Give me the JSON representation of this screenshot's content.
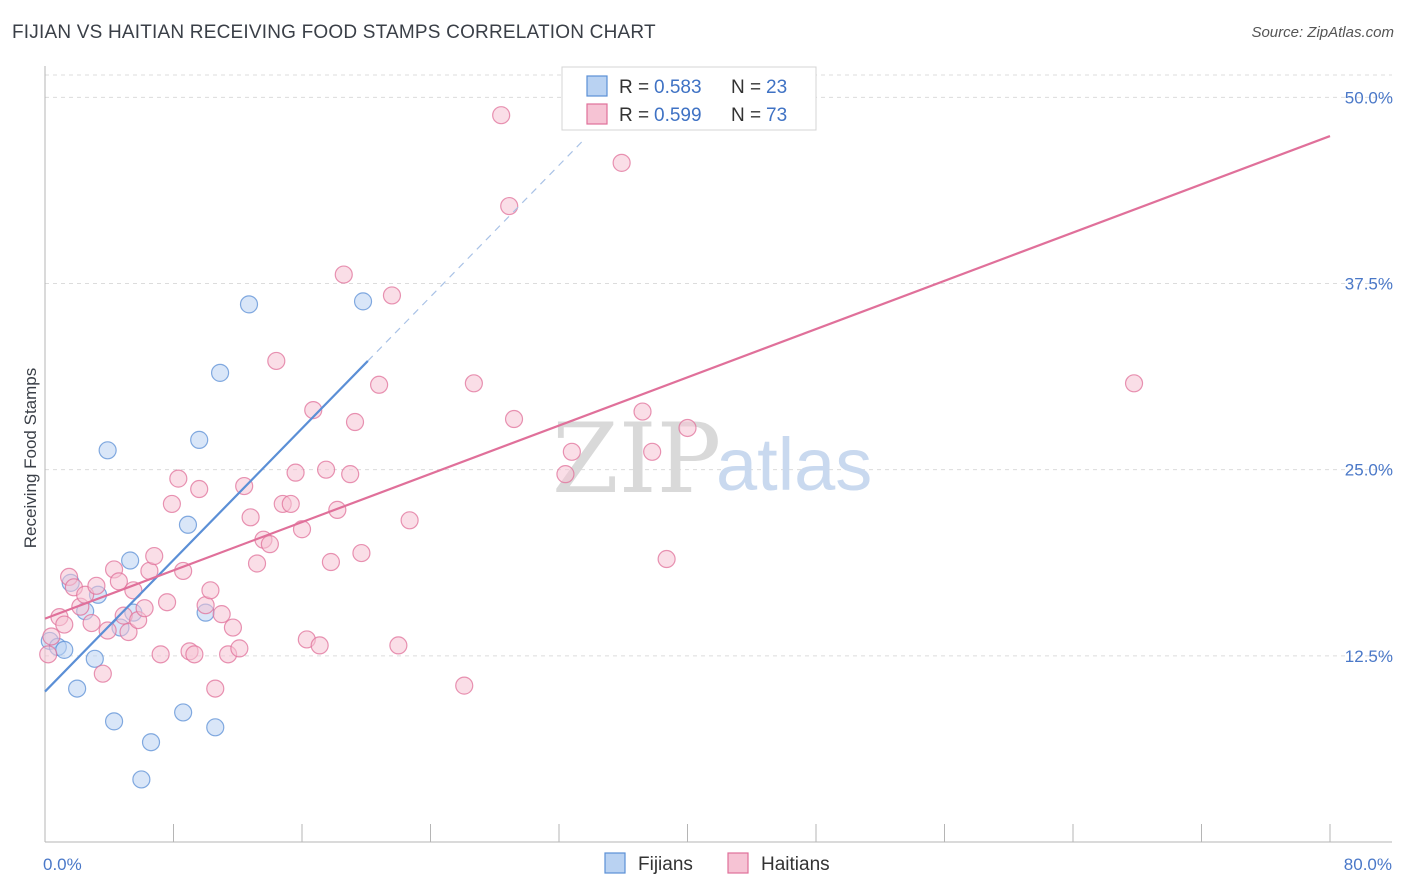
{
  "title": "FIJIAN VS HAITIAN RECEIVING FOOD STAMPS CORRELATION CHART",
  "source": "Source: ZipAtlas.com",
  "watermark": {
    "zip": "ZIP",
    "atlas": "atlas"
  },
  "chart_data": {
    "type": "scatter",
    "xlabel": "",
    "ylabel": "Receiving Food Stamps",
    "xlim": [
      0,
      80
    ],
    "ylim": [
      0,
      51.5
    ],
    "x_tick_labels": [
      {
        "value": 0,
        "label": "0.0%"
      },
      {
        "value": 80,
        "label": "80.0%"
      }
    ],
    "y_tick_labels": [
      {
        "value": 12.5,
        "label": "12.5%"
      },
      {
        "value": 25.0,
        "label": "25.0%"
      },
      {
        "value": 37.5,
        "label": "37.5%"
      },
      {
        "value": 50.0,
        "label": "50.0%"
      }
    ],
    "legend_stats": [
      {
        "name": "Fijians",
        "r_label": "R =",
        "r_value": "0.583",
        "n_label": "N =",
        "n_value": "23"
      },
      {
        "name": "Haitians",
        "r_label": "R =",
        "r_value": "0.599",
        "n_label": "N =",
        "n_value": "73"
      }
    ],
    "series": [
      {
        "name": "Fijians",
        "color": "#5b8fd6",
        "fill": "#b9d2f2",
        "trend": {
          "x0": 0,
          "y0": 10.1,
          "x1": 20.1,
          "y1": 32.3,
          "dash_to_x": 33.6
        },
        "points": [
          [
            0.3,
            13.5
          ],
          [
            0.8,
            13.1
          ],
          [
            1.2,
            12.9
          ],
          [
            1.6,
            17.4
          ],
          [
            2.0,
            10.3
          ],
          [
            2.5,
            15.5
          ],
          [
            3.1,
            12.3
          ],
          [
            3.3,
            16.6
          ],
          [
            3.9,
            26.3
          ],
          [
            4.3,
            8.1
          ],
          [
            4.7,
            14.4
          ],
          [
            5.3,
            18.9
          ],
          [
            5.5,
            15.4
          ],
          [
            6.0,
            4.2
          ],
          [
            6.6,
            6.7
          ],
          [
            8.6,
            8.7
          ],
          [
            8.9,
            21.3
          ],
          [
            9.6,
            27.0
          ],
          [
            10.0,
            15.4
          ],
          [
            10.6,
            7.7
          ],
          [
            10.9,
            31.5
          ],
          [
            12.7,
            36.1
          ],
          [
            19.8,
            36.3
          ]
        ]
      },
      {
        "name": "Haitians",
        "color": "#e0709a",
        "fill": "#f6c3d4",
        "trend": {
          "x0": 0,
          "y0": 15.0,
          "x1": 80,
          "y1": 47.4
        },
        "points": [
          [
            0.2,
            12.6
          ],
          [
            0.4,
            13.8
          ],
          [
            0.9,
            15.1
          ],
          [
            1.2,
            14.6
          ],
          [
            1.5,
            17.8
          ],
          [
            1.8,
            17.1
          ],
          [
            2.2,
            15.8
          ],
          [
            2.5,
            16.6
          ],
          [
            2.9,
            14.7
          ],
          [
            3.2,
            17.2
          ],
          [
            3.6,
            11.3
          ],
          [
            3.9,
            14.2
          ],
          [
            4.3,
            18.3
          ],
          [
            4.6,
            17.5
          ],
          [
            4.9,
            15.2
          ],
          [
            5.2,
            14.1
          ],
          [
            5.5,
            16.9
          ],
          [
            5.8,
            14.9
          ],
          [
            6.2,
            15.7
          ],
          [
            6.5,
            18.2
          ],
          [
            6.8,
            19.2
          ],
          [
            7.2,
            12.6
          ],
          [
            7.6,
            16.1
          ],
          [
            7.9,
            22.7
          ],
          [
            8.3,
            24.4
          ],
          [
            8.6,
            18.2
          ],
          [
            9.0,
            12.8
          ],
          [
            9.3,
            12.6
          ],
          [
            9.6,
            23.7
          ],
          [
            10.0,
            15.9
          ],
          [
            10.3,
            16.9
          ],
          [
            10.6,
            10.3
          ],
          [
            11.0,
            15.3
          ],
          [
            11.4,
            12.6
          ],
          [
            11.7,
            14.4
          ],
          [
            12.1,
            13.0
          ],
          [
            12.4,
            23.9
          ],
          [
            12.8,
            21.8
          ],
          [
            13.2,
            18.7
          ],
          [
            13.6,
            20.3
          ],
          [
            14.0,
            20.0
          ],
          [
            14.4,
            32.3
          ],
          [
            14.8,
            22.7
          ],
          [
            15.3,
            22.7
          ],
          [
            15.6,
            24.8
          ],
          [
            16.0,
            21.0
          ],
          [
            16.3,
            13.6
          ],
          [
            16.7,
            29.0
          ],
          [
            17.1,
            13.2
          ],
          [
            17.5,
            25.0
          ],
          [
            17.8,
            18.8
          ],
          [
            18.2,
            22.3
          ],
          [
            18.6,
            38.1
          ],
          [
            19.0,
            24.7
          ],
          [
            19.3,
            28.2
          ],
          [
            19.7,
            19.4
          ],
          [
            20.8,
            30.7
          ],
          [
            21.6,
            36.7
          ],
          [
            22.0,
            13.2
          ],
          [
            22.7,
            21.6
          ],
          [
            26.1,
            10.5
          ],
          [
            26.7,
            30.8
          ],
          [
            28.4,
            48.8
          ],
          [
            28.9,
            42.7
          ],
          [
            29.2,
            28.4
          ],
          [
            32.4,
            24.7
          ],
          [
            32.8,
            26.2
          ],
          [
            35.9,
            45.6
          ],
          [
            37.2,
            28.9
          ],
          [
            37.8,
            26.2
          ],
          [
            38.7,
            19.0
          ],
          [
            40.0,
            27.8
          ],
          [
            67.8,
            30.8
          ]
        ]
      }
    ]
  }
}
